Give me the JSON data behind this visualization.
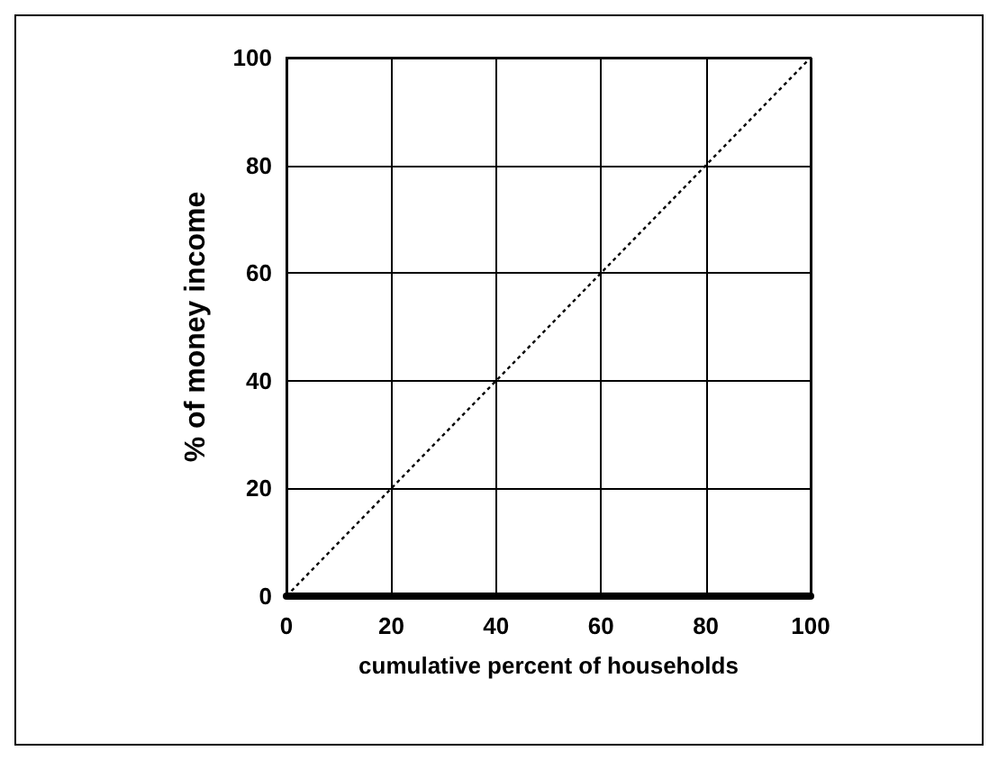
{
  "chart_data": {
    "type": "line",
    "xlabel": "cumulative percent of households",
    "ylabel": "% of money income",
    "x": [
      0,
      100
    ],
    "series": [
      {
        "color": "#000000",
        "values": [
          0,
          100
        ]
      }
    ],
    "line_style": "dotted",
    "marker": "none",
    "xlim": [
      0,
      100
    ],
    "xticks": [
      0,
      20,
      40,
      60,
      80,
      100
    ],
    "ylim": [
      0,
      100
    ],
    "yticks": [
      0,
      20,
      40,
      60,
      80,
      100
    ],
    "grid": true
  }
}
